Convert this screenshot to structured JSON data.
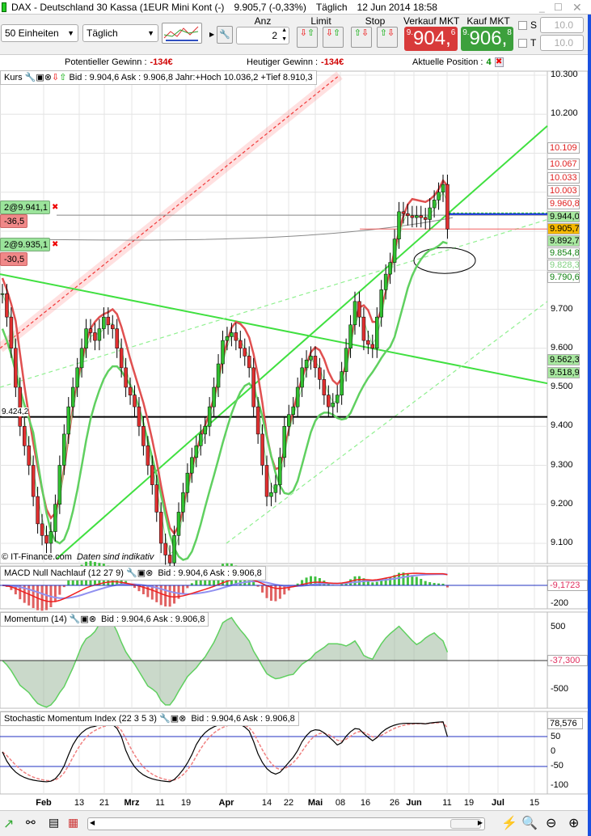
{
  "window": {
    "title": "DAX - Deutschland 30 Kassa (1EUR Mini Kont (-)",
    "last": "9.905,7 (-0,33%)",
    "period": "Täglich",
    "datetime": "12 Jun 2014 18:58"
  },
  "toolbar": {
    "units": "50 Einheiten",
    "interval": "Täglich",
    "anz_label": "Anz",
    "anz_value": "2",
    "limit_label": "Limit",
    "stop_label": "Stop",
    "sell_label": "Verkauf MKT",
    "sell_prefix": "9.",
    "sell_main": "904,",
    "sell_frac": "6",
    "buy_label": "Kauf MKT",
    "buy_prefix": "9.",
    "buy_main": "906,",
    "buy_frac": "8",
    "s_label": "S",
    "t_label": "T",
    "s_value": "10.0",
    "t_value": "10.0"
  },
  "info": {
    "pot_label": "Potentieller Gewinn :",
    "pot_value": "-134€",
    "today_label": "Heutiger Gewinn :",
    "today_value": "-134€",
    "pos_label": "Aktuelle Position :",
    "pos_value": "4"
  },
  "main_chart": {
    "header": "Kurs",
    "bidask": "Bid : 9.904,6 Ask : 9.906,8 Jahr:+Hoch 10.036,2 +Tief 8.910,3",
    "credit": "© IT-Finance.com",
    "disclaimer": "Daten sind indikativ",
    "positions": [
      {
        "label": "2@9.941,1",
        "pl": "-36,5"
      },
      {
        "label": "2@9.935,1",
        "pl": "-30,5"
      }
    ],
    "hline_label": "9.424,2",
    "y_ticks": [
      "10.300",
      "10.200",
      "9.700",
      "9.600",
      "9.500",
      "9.400",
      "9.300",
      "9.200",
      "9.100"
    ],
    "tags": [
      {
        "v": "10.109",
        "c": "#e02020",
        "bg": "#fff"
      },
      {
        "v": "10.067",
        "c": "#e02020",
        "bg": "#fff"
      },
      {
        "v": "10.033",
        "c": "#e02020",
        "bg": "#fff"
      },
      {
        "v": "10.003",
        "c": "#e02020",
        "bg": "#fff"
      },
      {
        "v": "9.960,8",
        "c": "#e02020",
        "bg": "#fff"
      },
      {
        "v": "9.944,0",
        "c": "#000",
        "bg": "#a8e8a0"
      },
      {
        "v": "9.892,7",
        "c": "#000",
        "bg": "#a8e8a0"
      },
      {
        "v": "9.905,7",
        "c": "#000",
        "bg": "#f5b800"
      },
      {
        "v": "9.854,8",
        "c": "#108010",
        "bg": "#fff"
      },
      {
        "v": "9.828,3",
        "c": "#80d080",
        "bg": "#fff"
      },
      {
        "v": "9.790,6",
        "c": "#108010",
        "bg": "#fff"
      },
      {
        "v": "9.562,3",
        "c": "#000",
        "bg": "#a8e8a0"
      },
      {
        "v": "9.518,9",
        "c": "#000",
        "bg": "#a8e8a0"
      }
    ]
  },
  "chart_data": {
    "type": "candlestick",
    "ylim": [
      9050,
      10320
    ],
    "closes": [
      9740,
      9680,
      9600,
      9500,
      9400,
      9350,
      9300,
      9220,
      9150,
      9120,
      9100,
      9130,
      9200,
      9300,
      9380,
      9450,
      9500,
      9550,
      9600,
      9650,
      9640,
      9620,
      9650,
      9680,
      9660,
      9650,
      9600,
      9550,
      9500,
      9480,
      9450,
      9400,
      9350,
      9300,
      9250,
      9180,
      9100,
      9070,
      9050,
      9120,
      9180,
      9230,
      9280,
      9320,
      9350,
      9380,
      9400,
      9450,
      9500,
      9560,
      9620,
      9630,
      9640,
      9620,
      9600,
      9580,
      9550,
      9450,
      9380,
      9300,
      9220,
      9230,
      9250,
      9320,
      9400,
      9430,
      9450,
      9500,
      9550,
      9570,
      9580,
      9550,
      9520,
      9480,
      9450,
      9460,
      9480,
      9540,
      9600,
      9660,
      9720,
      9680,
      9620,
      9610,
      9600,
      9680,
      9750,
      9790,
      9820,
      9880,
      9950,
      9945,
      9940,
      9935,
      9940,
      9935,
      9930,
      9960,
      9980,
      10000,
      10020,
      9905.7
    ],
    "x_ticks": [
      "Feb",
      "13",
      "21",
      "Mrz",
      "11",
      "19",
      "Apr",
      "14",
      "22",
      "Mai",
      "08",
      "16",
      "26",
      "Jun",
      "11",
      "19",
      "Jul",
      "15"
    ]
  },
  "macd": {
    "header": "MACD Null Nachlauf (12 27 9)",
    "bidask": "Bid : 9.904,6 Ask : 9.906,8",
    "value": "-9,1723",
    "tick": "-200"
  },
  "momentum": {
    "header": "Momentum (14)",
    "bidask": "Bid : 9.904,6 Ask : 9.906,8",
    "value": "-37,300",
    "ticks": [
      "500",
      "-500"
    ]
  },
  "stoch": {
    "header": "Stochastic Momentum Index (22 3 5 3)",
    "bidask": "Bid : 9.904,6 Ask : 9.906,8",
    "value": "78,576",
    "ticks": [
      "50",
      "0",
      "-50",
      "-100"
    ]
  },
  "colors": {
    "sell": "#d83a3a",
    "buy": "#3ca03c",
    "up": "#30c030",
    "down": "#e03030"
  }
}
